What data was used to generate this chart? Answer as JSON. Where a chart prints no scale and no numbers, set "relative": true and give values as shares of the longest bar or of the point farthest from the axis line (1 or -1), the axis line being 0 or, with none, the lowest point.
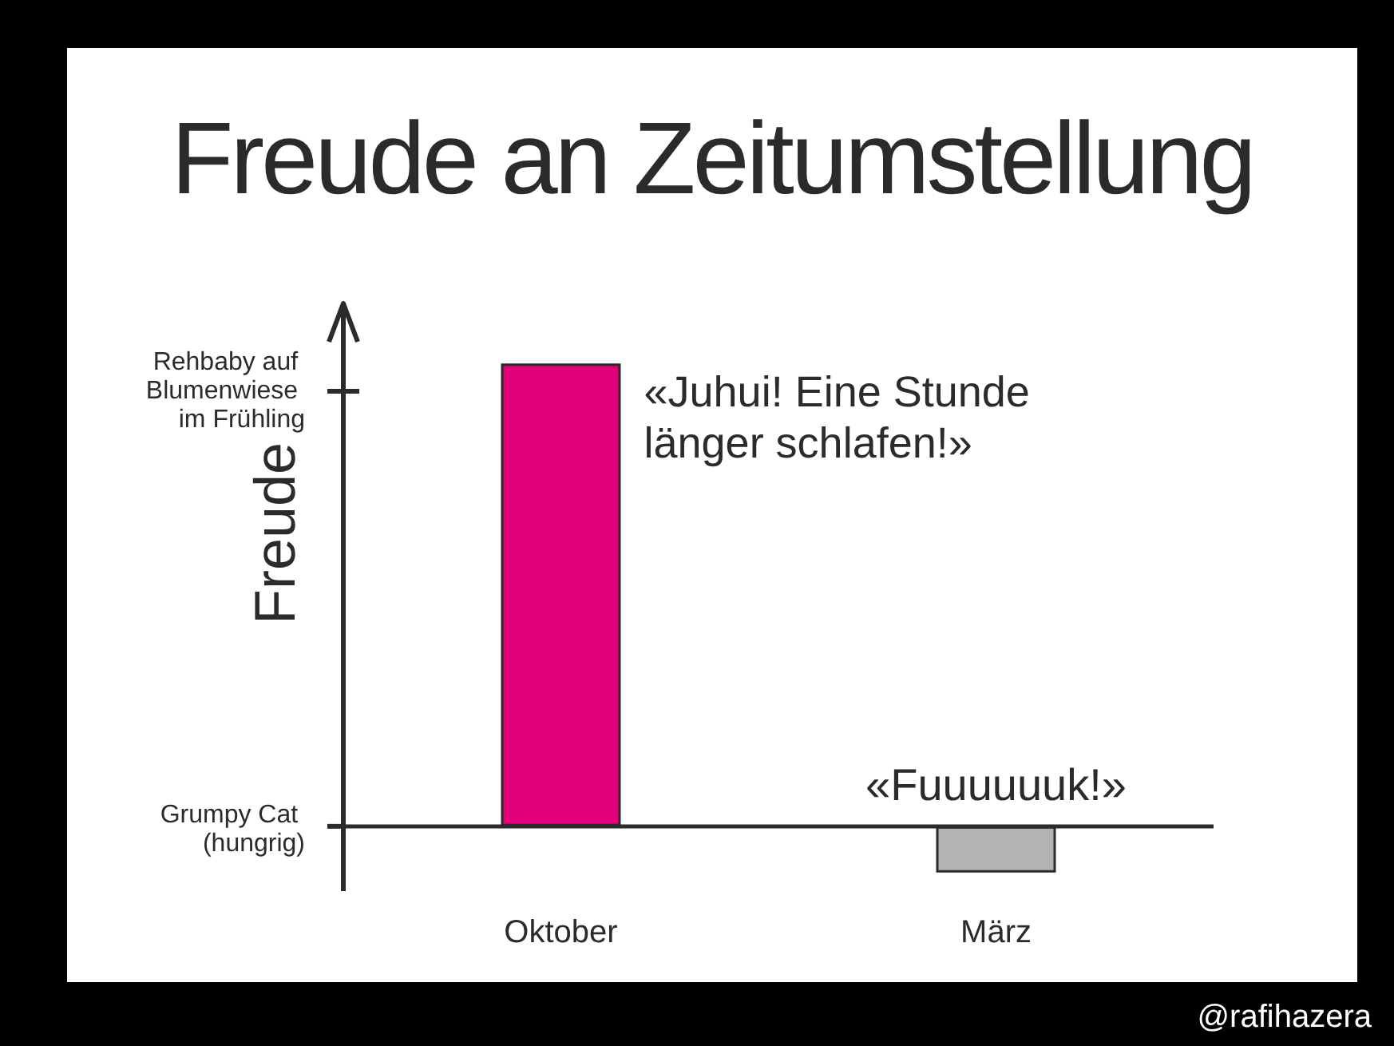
{
  "chart_data": {
    "type": "bar",
    "title": "Freude an Zeitumstellung",
    "ylabel": "Freude",
    "relative": true,
    "categories": [
      "Oktober",
      "März"
    ],
    "values": [
      1,
      -0.1
    ],
    "colors": [
      "#e2007a",
      "#b3b3b3"
    ],
    "ref_lines": [
      {
        "axis": "y",
        "value": 0,
        "color": "#2b2b2b"
      }
    ],
    "annotations": [
      "Grumpy Cat (hungrig)",
      "Rehbaby auf Blumenwiese im Frühling",
      "«Juhui! Eine Stunde länger schlafen!»",
      "«Fuuuuuuk!»",
      "@rafihazera"
    ]
  }
}
